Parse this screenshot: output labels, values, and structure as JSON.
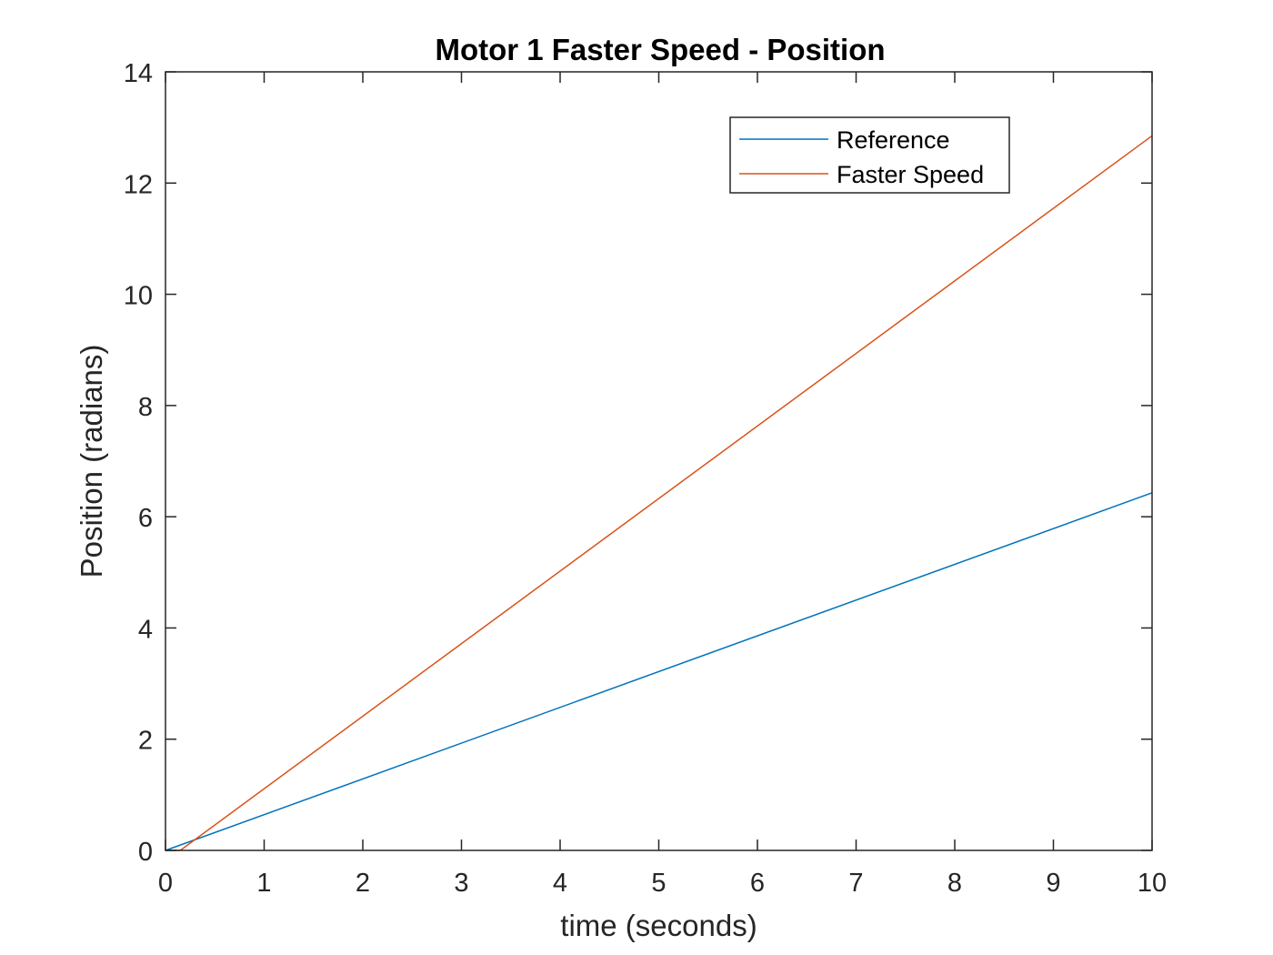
{
  "chart_data": {
    "type": "line",
    "title": "Motor 1 Faster Speed - Position",
    "xlabel": "time (seconds)",
    "ylabel": "Position (radians)",
    "xlim": [
      0,
      10
    ],
    "ylim": [
      0,
      14
    ],
    "xticks": [
      "0",
      "1",
      "2",
      "3",
      "4",
      "5",
      "6",
      "7",
      "8",
      "9",
      "10"
    ],
    "yticks": [
      "0",
      "2",
      "4",
      "6",
      "8",
      "10",
      "12",
      "14"
    ],
    "grid": false,
    "legend_position": "top-right",
    "series": [
      {
        "name": "Reference",
        "color": "#0072BD",
        "x": [
          0,
          10
        ],
        "y": [
          0,
          6.43
        ]
      },
      {
        "name": "Faster Speed",
        "color": "#D95319",
        "x": [
          0,
          0.15,
          10
        ],
        "y": [
          0,
          0,
          12.85
        ]
      }
    ]
  }
}
